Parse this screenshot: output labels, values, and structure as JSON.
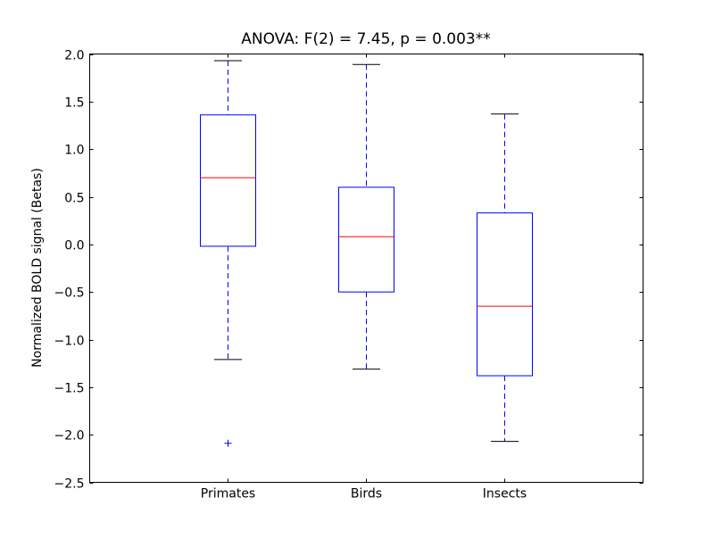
{
  "chart_data": {
    "type": "boxplot",
    "title": "ANOVA: F(2) = 7.45, p = 0.003**",
    "xlabel": "",
    "ylabel": "Normalized BOLD signal (Betas)",
    "ylim": [
      -2.5,
      2.0
    ],
    "yticks": [
      "2.0",
      "1.5",
      "1.0",
      "0.5",
      "0.0",
      "−0.5",
      "−1.0",
      "−1.5",
      "−2.0",
      "−2.5"
    ],
    "ytick_values": [
      2.0,
      1.5,
      1.0,
      0.5,
      0.0,
      -0.5,
      -1.0,
      -1.5,
      -2.0,
      -2.5
    ],
    "categories": [
      "Primates",
      "Birds",
      "Insects"
    ],
    "boxes": [
      {
        "whisker_high": 1.93,
        "q3": 1.36,
        "median": 0.7,
        "q1": -0.02,
        "whisker_low": -1.21,
        "outliers": [
          -2.09
        ]
      },
      {
        "whisker_high": 1.89,
        "q3": 0.6,
        "median": 0.08,
        "q1": -0.5,
        "whisker_low": -1.31,
        "outliers": []
      },
      {
        "whisker_high": 1.37,
        "q3": 0.33,
        "median": -0.65,
        "q1": -1.38,
        "whisker_low": -2.07,
        "outliers": []
      }
    ],
    "grid": false,
    "colors": {
      "box": "#0000ff",
      "median": "#ff0000",
      "cap": "#000000",
      "outlier": "#0000ff"
    }
  }
}
